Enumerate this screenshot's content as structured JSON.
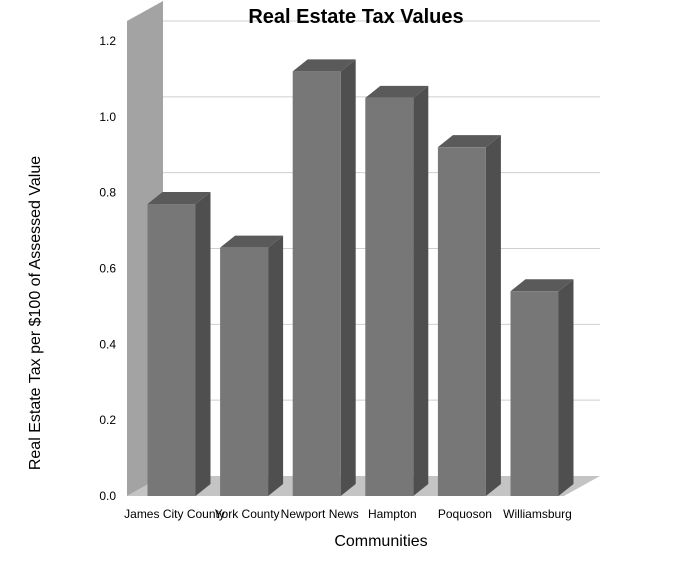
{
  "chart_data": {
    "type": "bar",
    "title": "Real Estate Tax Values",
    "xlabel": "Communities",
    "ylabel": "Real Estate Tax per $100 of Assessed Value",
    "categories": [
      "James City County",
      "York County",
      "Newport News",
      "Hampton",
      "Poquoson",
      "Williamsburg"
    ],
    "values": [
      0.77,
      0.655,
      1.12,
      1.05,
      0.92,
      0.54
    ],
    "ylim": [
      0,
      1.2
    ],
    "yticks": [
      "0.0",
      "0.2",
      "0.4",
      "0.6",
      "0.8",
      "1.0",
      "1.2"
    ],
    "grid": true,
    "legend": "none",
    "style": "3d",
    "colors": {
      "bar_front": "#777777",
      "bar_side": "#4f4f4f",
      "bar_top": "#5a5a5a",
      "back_wall": "#a3a3a3",
      "floor": "#c4c4c4"
    }
  }
}
